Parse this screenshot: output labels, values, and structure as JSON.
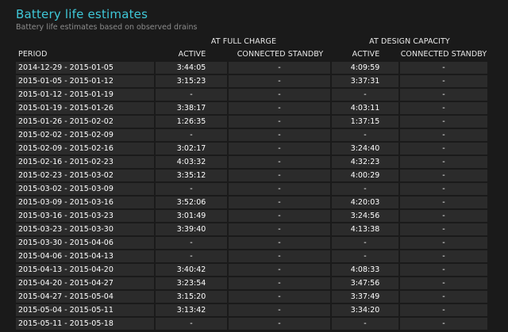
{
  "report": {
    "title": "Battery life estimates",
    "subtitle": "Battery life estimates based on observed drains"
  },
  "table": {
    "group_headers": [
      "AT FULL CHARGE",
      "AT DESIGN CAPACITY"
    ],
    "columns": [
      "PERIOD",
      "ACTIVE",
      "CONNECTED STANDBY",
      "ACTIVE",
      "CONNECTED STANDBY"
    ],
    "rows": [
      {
        "period": "2014-12-29 - 2015-01-05",
        "full_active": "3:44:05",
        "full_standby": "-",
        "design_active": "4:09:59",
        "design_standby": "-"
      },
      {
        "period": "2015-01-05 - 2015-01-12",
        "full_active": "3:15:23",
        "full_standby": "-",
        "design_active": "3:37:31",
        "design_standby": "-"
      },
      {
        "period": "2015-01-12 - 2015-01-19",
        "full_active": "-",
        "full_standby": "-",
        "design_active": "-",
        "design_standby": "-"
      },
      {
        "period": "2015-01-19 - 2015-01-26",
        "full_active": "3:38:17",
        "full_standby": "-",
        "design_active": "4:03:11",
        "design_standby": "-"
      },
      {
        "period": "2015-01-26 - 2015-02-02",
        "full_active": "1:26:35",
        "full_standby": "-",
        "design_active": "1:37:15",
        "design_standby": "-"
      },
      {
        "period": "2015-02-02 - 2015-02-09",
        "full_active": "-",
        "full_standby": "-",
        "design_active": "-",
        "design_standby": "-"
      },
      {
        "period": "2015-02-09 - 2015-02-16",
        "full_active": "3:02:17",
        "full_standby": "-",
        "design_active": "3:24:40",
        "design_standby": "-"
      },
      {
        "period": "2015-02-16 - 2015-02-23",
        "full_active": "4:03:32",
        "full_standby": "-",
        "design_active": "4:32:23",
        "design_standby": "-"
      },
      {
        "period": "2015-02-23 - 2015-03-02",
        "full_active": "3:35:12",
        "full_standby": "-",
        "design_active": "4:00:29",
        "design_standby": "-"
      },
      {
        "period": "2015-03-02 - 2015-03-09",
        "full_active": "-",
        "full_standby": "-",
        "design_active": "-",
        "design_standby": "-"
      },
      {
        "period": "2015-03-09 - 2015-03-16",
        "full_active": "3:52:06",
        "full_standby": "-",
        "design_active": "4:20:03",
        "design_standby": "-"
      },
      {
        "period": "2015-03-16 - 2015-03-23",
        "full_active": "3:01:49",
        "full_standby": "-",
        "design_active": "3:24:56",
        "design_standby": "-"
      },
      {
        "period": "2015-03-23 - 2015-03-30",
        "full_active": "3:39:40",
        "full_standby": "-",
        "design_active": "4:13:38",
        "design_standby": "-"
      },
      {
        "period": "2015-03-30 - 2015-04-06",
        "full_active": "-",
        "full_standby": "-",
        "design_active": "-",
        "design_standby": "-"
      },
      {
        "period": "2015-04-06 - 2015-04-13",
        "full_active": "-",
        "full_standby": "-",
        "design_active": "-",
        "design_standby": "-"
      },
      {
        "period": "2015-04-13 - 2015-04-20",
        "full_active": "3:40:42",
        "full_standby": "-",
        "design_active": "4:08:33",
        "design_standby": "-"
      },
      {
        "period": "2015-04-20 - 2015-04-27",
        "full_active": "3:23:54",
        "full_standby": "-",
        "design_active": "3:47:56",
        "design_standby": "-"
      },
      {
        "period": "2015-04-27 - 2015-05-04",
        "full_active": "3:15:20",
        "full_standby": "-",
        "design_active": "3:37:49",
        "design_standby": "-"
      },
      {
        "period": "2015-05-04 - 2015-05-11",
        "full_active": "3:13:42",
        "full_standby": "-",
        "design_active": "3:34:20",
        "design_standby": "-"
      },
      {
        "period": "2015-05-11 - 2015-05-18",
        "full_active": "-",
        "full_standby": "-",
        "design_active": "-",
        "design_standby": "-"
      }
    ]
  }
}
